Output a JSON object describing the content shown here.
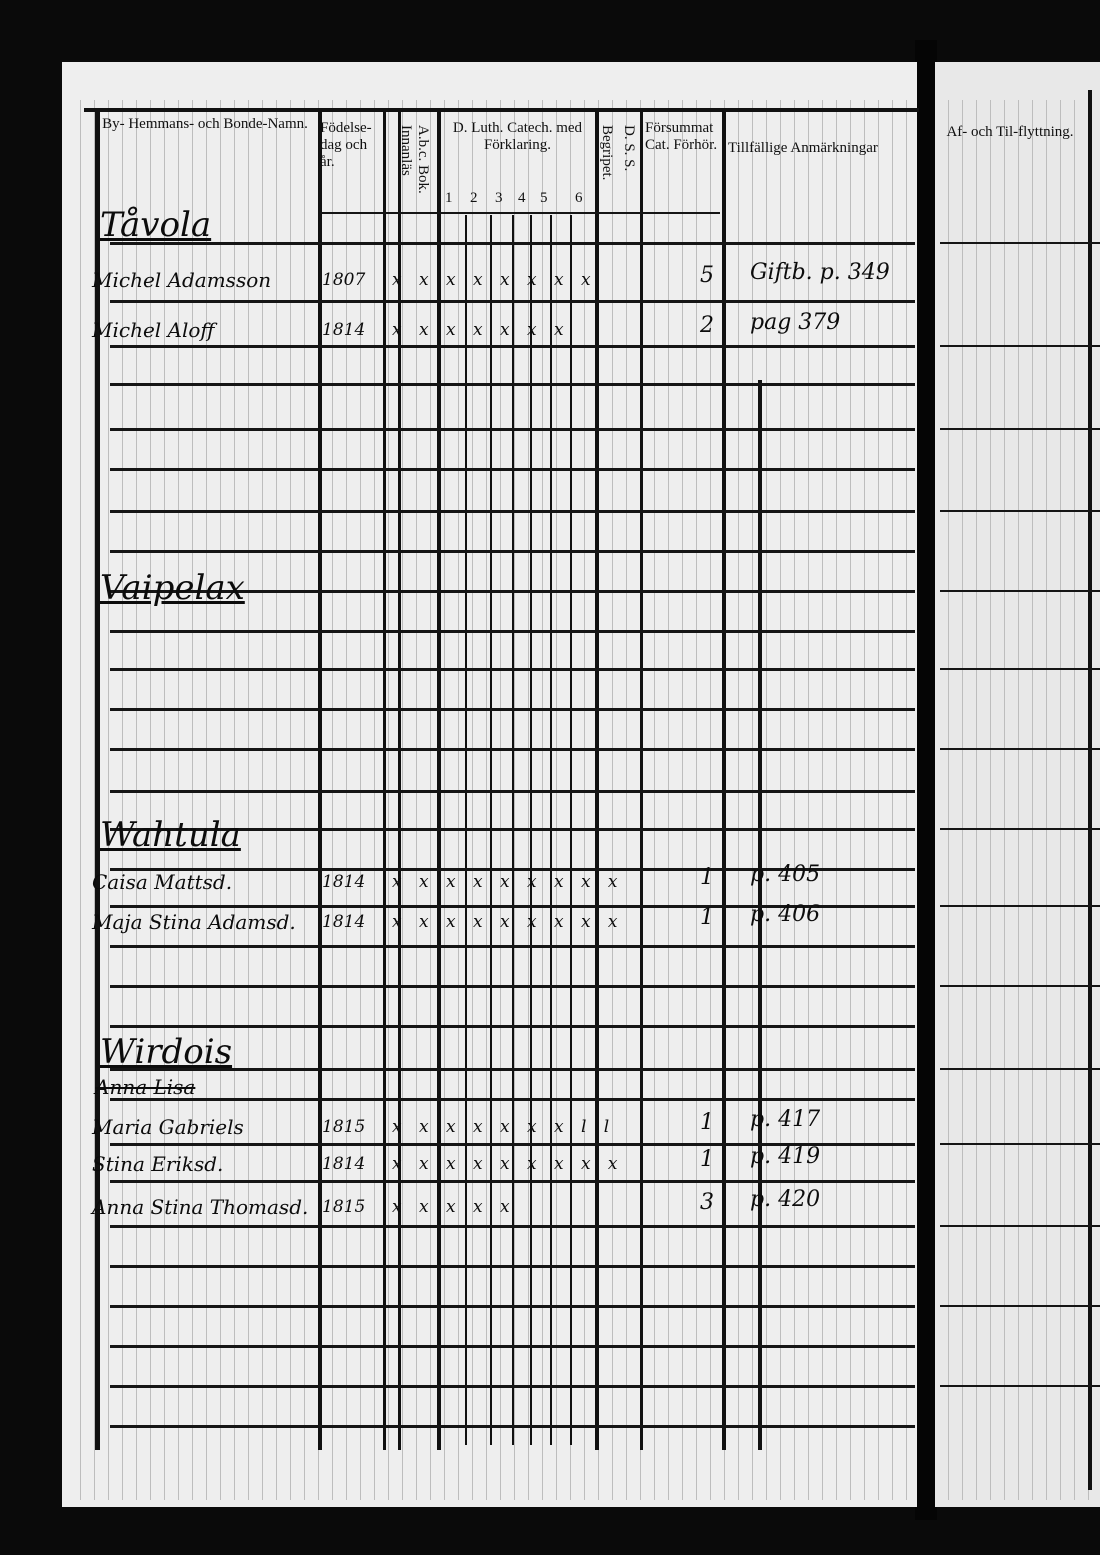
{
  "header": {
    "col_name": "By- Hemmans- och Bonde-Namn.",
    "col_birth": "Födelse-dag och år.",
    "col_abc": "A.b.c. Bok. Innanläs",
    "col_catech": "D. Luth. Catech. med Förklaring.",
    "catech_parts": [
      "1",
      "2",
      "3",
      "4",
      "5",
      "6"
    ],
    "col_begripet": "Begripet.",
    "col_dss": "D. S. S.",
    "col_forsummat": "Försummat Cat. Förhör.",
    "col_remarks": "Tillfällige Anmärkningar",
    "col_moving": "Af- och Til-flyttning."
  },
  "sections": [
    {
      "village": "Tåvola",
      "persons": [
        {
          "name": "Michel Adamsson",
          "birth": "1807",
          "marks": "x x x x x x x x",
          "missed": "5",
          "remark": "Giftb. p. 349"
        },
        {
          "name": "Michel Aloff",
          "birth": "1814",
          "marks": "x x x x x x x",
          "missed": "2",
          "remark": "pag 379"
        }
      ]
    },
    {
      "village": "Vaipelax",
      "persons": []
    },
    {
      "village": "Wahtula",
      "persons": [
        {
          "name": "Caisa Mattsd.",
          "birth": "1814",
          "marks": "x x x x x x x x x",
          "missed": "1",
          "remark": "p. 405"
        },
        {
          "name": "Maja Stina Adamsd.",
          "birth": "1814",
          "marks": "x x x x x x x x x",
          "missed": "1",
          "remark": "p. 406"
        }
      ]
    },
    {
      "village": "Wirdois",
      "struck": "Anna Lisa",
      "persons": [
        {
          "name": "Maria Gabriels",
          "birth": "1815",
          "marks": "x x x x x x x l l",
          "missed": "1",
          "remark": "p. 417"
        },
        {
          "name": "Stina Eriksd.",
          "birth": "1814",
          "marks": "x x x x x x x x x",
          "missed": "1",
          "remark": "p. 419"
        },
        {
          "name": "Anna Stina Thomasd.",
          "birth": "1815",
          "marks": "x x x x x",
          "missed": "3",
          "remark": "p. 420"
        }
      ]
    }
  ]
}
